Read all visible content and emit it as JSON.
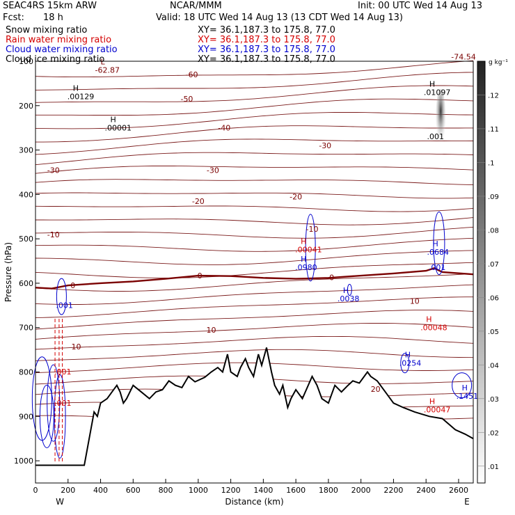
{
  "header": {
    "model": "SEAC4RS 15km ARW",
    "org": "NCAR/MMM",
    "init": "Init: 00 UTC Wed 14 Aug 13",
    "fcst_label": "Fcst:",
    "fcst_value": "18 h",
    "valid": "Valid: 18 UTC Wed 14 Aug 13 (13 CDT Wed 14 Aug 13)"
  },
  "fields": [
    {
      "name": "Snow mixing ratio",
      "xy": "XY=  36.1,187.3 to 175.8, 77.0",
      "color": "#000000"
    },
    {
      "name": "Rain water mixing ratio",
      "xy": "XY=  36.1,187.3 to 175.8, 77.0",
      "color": "#d40000"
    },
    {
      "name": "Cloud water mixing ratio",
      "xy": "XY=  36.1,187.3 to 175.8, 77.0",
      "color": "#0000cc"
    },
    {
      "name": "Cloud ice mixing ratio",
      "xy": "XY=  36.1,187.3 to 175.8, 77.0",
      "color": "#000000"
    }
  ],
  "chart_data": {
    "type": "cross-section",
    "xlabel": "Distance (km)",
    "ylabel": "Pressure (hPa)",
    "x_ticks": [
      0,
      200,
      400,
      600,
      800,
      1000,
      1200,
      1400,
      1600,
      1800,
      2000,
      2200,
      2400,
      2600
    ],
    "y_ticks": [
      100,
      200,
      300,
      400,
      500,
      600,
      700,
      800,
      900,
      1000
    ],
    "xlim": [
      0,
      2690
    ],
    "ylim": [
      1050,
      100
    ],
    "left_end_label": "W",
    "right_end_label": "E",
    "colorbar_unit": "g kg⁻¹",
    "colorbar_ticks": [
      ".01",
      ".02",
      ".03",
      ".04",
      ".05",
      ".06",
      ".07",
      ".08",
      ".09",
      ".1",
      ".11",
      ".12"
    ],
    "temperature_contour_labels": [
      {
        "text": "-60",
        "x": 960,
        "p": 130
      },
      {
        "text": "-50",
        "x": 930,
        "p": 185
      },
      {
        "text": "-40",
        "x": 1160,
        "p": 250
      },
      {
        "text": "-30",
        "x": 110,
        "p": 345
      },
      {
        "text": "-30",
        "x": 1090,
        "p": 345
      },
      {
        "text": "-30",
        "x": 1780,
        "p": 290
      },
      {
        "text": "-20",
        "x": 1000,
        "p": 415
      },
      {
        "text": "-20",
        "x": 1600,
        "p": 405
      },
      {
        "text": "-10",
        "x": 110,
        "p": 490
      },
      {
        "text": "-10",
        "x": 1700,
        "p": 478
      },
      {
        "text": "0",
        "x": 1010,
        "p": 583
      },
      {
        "text": "0",
        "x": 1820,
        "p": 587
      },
      {
        "text": "0",
        "x": 230,
        "p": 605
      },
      {
        "text": "10",
        "x": 1080,
        "p": 705
      },
      {
        "text": "10",
        "x": 250,
        "p": 743
      },
      {
        "text": "10",
        "x": 2330,
        "p": 640
      },
      {
        "text": "20",
        "x": 2090,
        "p": 838
      },
      {
        "text": "-74.54",
        "x": 2630,
        "p": 90
      }
    ],
    "extrema": [
      {
        "kind": "L",
        "value": "-62.87",
        "x": 400,
        "p": 110,
        "color": "#7a0000"
      },
      {
        "kind": "H",
        "value": ".00129",
        "x": 230,
        "p": 170,
        "color": "#000000"
      },
      {
        "kind": "H",
        "value": ".00001",
        "x": 460,
        "p": 240,
        "color": "#000000"
      },
      {
        "kind": "H",
        "value": ".01097",
        "x": 2420,
        "p": 160,
        "color": "#000000"
      },
      {
        "kind": "",
        "value": ".001",
        "x": 2440,
        "p": 260,
        "color": "#000000"
      },
      {
        "kind": "H",
        "value": ".00041",
        "x": 1630,
        "p": 515,
        "color": "#d40000"
      },
      {
        "kind": "H",
        "value": ".0980",
        "x": 1630,
        "p": 555,
        "color": "#0000cc"
      },
      {
        "kind": "H",
        "value": ".0038",
        "x": 1890,
        "p": 625,
        "color": "#0000cc"
      },
      {
        "kind": "H",
        "value": ".0684",
        "x": 2440,
        "p": 520,
        "color": "#0000cc"
      },
      {
        "kind": "",
        "value": ".001",
        "x": 2450,
        "p": 555,
        "color": "#0000cc"
      },
      {
        "kind": "H",
        "value": ".00048",
        "x": 2400,
        "p": 690,
        "color": "#d40000"
      },
      {
        "kind": "H",
        "value": ".0254",
        "x": 2270,
        "p": 770,
        "color": "#0000cc"
      },
      {
        "kind": "H",
        "value": ".1451",
        "x": 2620,
        "p": 845,
        "color": "#0000cc"
      },
      {
        "kind": "H",
        "value": ".00047",
        "x": 2420,
        "p": 875,
        "color": "#d40000"
      },
      {
        "kind": "",
        "value": ".001",
        "x": 160,
        "p": 640,
        "color": "#0000cc"
      },
      {
        "kind": "",
        "value": ".001",
        "x": 150,
        "p": 790,
        "color": "#d40000"
      },
      {
        "kind": "",
        "value": ".001",
        "x": 150,
        "p": 860,
        "color": "#d40000"
      }
    ],
    "terrain": [
      [
        0,
        1010
      ],
      [
        150,
        1010
      ],
      [
        300,
        1010
      ],
      [
        340,
        930
      ],
      [
        360,
        890
      ],
      [
        380,
        900
      ],
      [
        400,
        870
      ],
      [
        440,
        860
      ],
      [
        470,
        845
      ],
      [
        500,
        830
      ],
      [
        520,
        845
      ],
      [
        540,
        870
      ],
      [
        560,
        860
      ],
      [
        600,
        830
      ],
      [
        650,
        845
      ],
      [
        700,
        860
      ],
      [
        740,
        845
      ],
      [
        780,
        840
      ],
      [
        820,
        820
      ],
      [
        860,
        830
      ],
      [
        900,
        835
      ],
      [
        940,
        810
      ],
      [
        980,
        822
      ],
      [
        1040,
        812
      ],
      [
        1080,
        800
      ],
      [
        1120,
        790
      ],
      [
        1150,
        800
      ],
      [
        1180,
        760
      ],
      [
        1200,
        800
      ],
      [
        1240,
        810
      ],
      [
        1260,
        790
      ],
      [
        1290,
        770
      ],
      [
        1310,
        790
      ],
      [
        1340,
        810
      ],
      [
        1370,
        760
      ],
      [
        1390,
        785
      ],
      [
        1420,
        745
      ],
      [
        1450,
        800
      ],
      [
        1470,
        830
      ],
      [
        1500,
        850
      ],
      [
        1520,
        830
      ],
      [
        1550,
        880
      ],
      [
        1570,
        860
      ],
      [
        1600,
        840
      ],
      [
        1640,
        860
      ],
      [
        1700,
        810
      ],
      [
        1730,
        830
      ],
      [
        1760,
        860
      ],
      [
        1800,
        870
      ],
      [
        1840,
        830
      ],
      [
        1880,
        845
      ],
      [
        1920,
        830
      ],
      [
        1950,
        820
      ],
      [
        1990,
        825
      ],
      [
        2040,
        800
      ],
      [
        2060,
        810
      ],
      [
        2100,
        820
      ],
      [
        2150,
        845
      ],
      [
        2200,
        870
      ],
      [
        2260,
        880
      ],
      [
        2330,
        890
      ],
      [
        2420,
        900
      ],
      [
        2500,
        905
      ],
      [
        2580,
        930
      ],
      [
        2640,
        940
      ],
      [
        2690,
        950
      ]
    ],
    "zero_isotherm": [
      [
        0,
        610
      ],
      [
        100,
        612
      ],
      [
        200,
        605
      ],
      [
        400,
        600
      ],
      [
        600,
        596
      ],
      [
        800,
        590
      ],
      [
        1000,
        583
      ],
      [
        1200,
        584
      ],
      [
        1400,
        588
      ],
      [
        1600,
        590
      ],
      [
        1800,
        588
      ],
      [
        2000,
        583
      ],
      [
        2200,
        578
      ],
      [
        2400,
        572
      ],
      [
        2450,
        566
      ],
      [
        2500,
        575
      ],
      [
        2690,
        580
      ]
    ]
  }
}
